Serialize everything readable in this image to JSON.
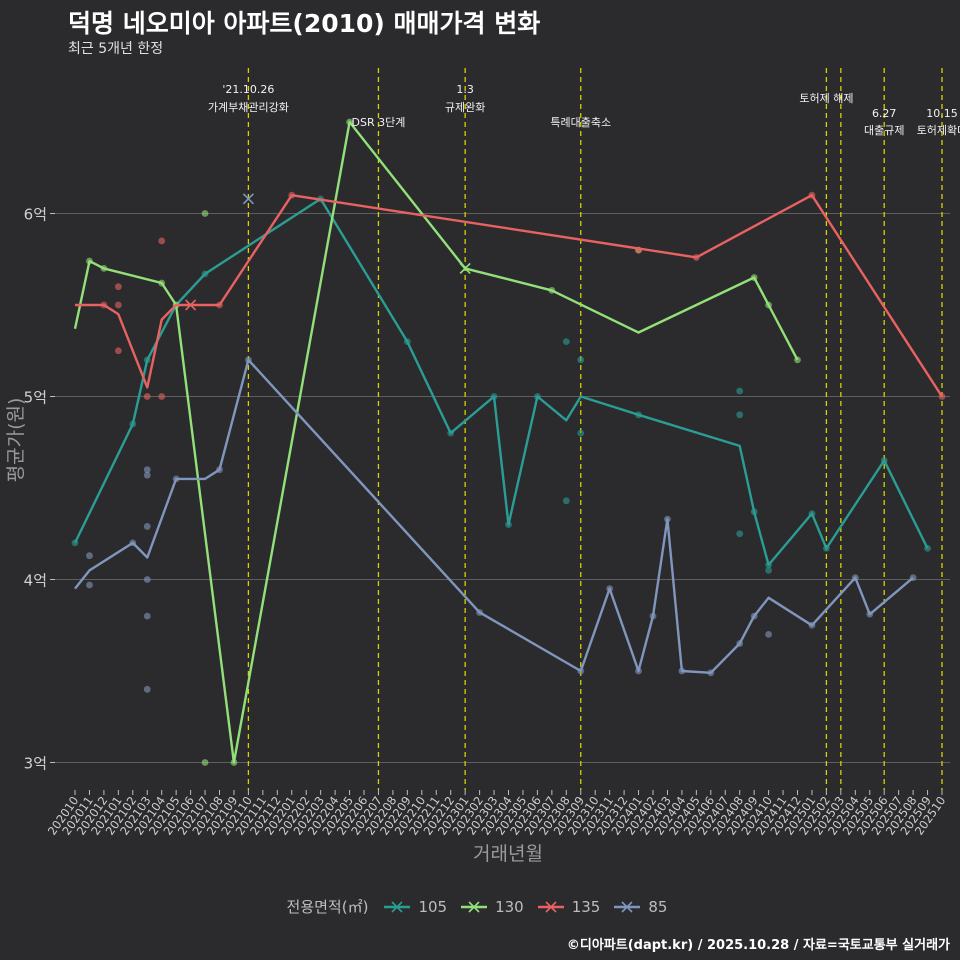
{
  "chart_data": {
    "type": "line",
    "title": "덕명 네오미아 아파트(2010) 매매가격 변화",
    "subtitle": "최근 5개년 한정",
    "xlabel": "거래년월",
    "ylabel": "평균가(원)",
    "ylim": [
      2.85,
      6.95
    ],
    "yticks": [
      {
        "value": 3,
        "label": "3억"
      },
      {
        "value": 4,
        "label": "4억"
      },
      {
        "value": 5,
        "label": "5억"
      },
      {
        "value": 6,
        "label": "6억"
      }
    ],
    "x_months": [
      "202010",
      "202011",
      "202012",
      "202101",
      "202102",
      "202103",
      "202104",
      "202105",
      "202106",
      "202107",
      "202108",
      "202109",
      "202110",
      "202111",
      "202112",
      "202201",
      "202202",
      "202203",
      "202204",
      "202205",
      "202206",
      "202207",
      "202208",
      "202209",
      "202210",
      "202211",
      "202212",
      "202301",
      "202302",
      "202303",
      "202304",
      "202305",
      "202306",
      "202307",
      "202308",
      "202309",
      "202310",
      "202311",
      "202312",
      "202401",
      "202402",
      "202403",
      "202404",
      "202405",
      "202406",
      "202407",
      "202408",
      "202409",
      "202410",
      "202411",
      "202412",
      "202501",
      "202502",
      "202503",
      "202504",
      "202505",
      "202506",
      "202507",
      "202508",
      "202509",
      "202510"
    ],
    "legend_title": "전용면적(㎡)",
    "series": [
      {
        "name": "105",
        "color": "#2a9d94",
        "line": [
          [
            0,
            4.2
          ],
          [
            4,
            4.85
          ],
          [
            5,
            5.2
          ],
          [
            7,
            5.5
          ],
          [
            9,
            5.67
          ],
          [
            17,
            6.08
          ],
          [
            23,
            5.3
          ],
          [
            26,
            4.8
          ],
          [
            29,
            5.0
          ],
          [
            30,
            4.3
          ],
          [
            32,
            5.0
          ],
          [
            34,
            4.87
          ],
          [
            35,
            5.0
          ],
          [
            39,
            4.9
          ],
          [
            46,
            4.73
          ],
          [
            47,
            4.37
          ],
          [
            48,
            4.08
          ],
          [
            51,
            4.36
          ],
          [
            52,
            4.17
          ],
          [
            56,
            4.65
          ],
          [
            59,
            4.17
          ]
        ],
        "points": [
          [
            0,
            4.2
          ],
          [
            4,
            4.85
          ],
          [
            5,
            5.2
          ],
          [
            7,
            5.5
          ],
          [
            9,
            5.67
          ],
          [
            17,
            6.08
          ],
          [
            23,
            5.3
          ],
          [
            26,
            4.8
          ],
          [
            29,
            5.0
          ],
          [
            30,
            4.3
          ],
          [
            32,
            5.0
          ],
          [
            34,
            5.3
          ],
          [
            34,
            4.43
          ],
          [
            35,
            5.2
          ],
          [
            35,
            4.8
          ],
          [
            39,
            4.9
          ],
          [
            46,
            5.03
          ],
          [
            46,
            4.9
          ],
          [
            46,
            4.25
          ],
          [
            47,
            4.37
          ],
          [
            48,
            4.08
          ],
          [
            48,
            4.05
          ],
          [
            51,
            4.36
          ],
          [
            52,
            4.17
          ],
          [
            56,
            4.65
          ],
          [
            59,
            4.17
          ]
        ]
      },
      {
        "name": "130",
        "color": "#93e07a",
        "line": [
          [
            0,
            5.37
          ],
          [
            1,
            5.74
          ],
          [
            2,
            5.7
          ],
          [
            6,
            5.62
          ],
          [
            7,
            5.5
          ],
          [
            11,
            3.0
          ],
          [
            19,
            6.5
          ],
          [
            27,
            5.7
          ],
          [
            33,
            5.58
          ],
          [
            39,
            5.35
          ],
          [
            47,
            5.65
          ],
          [
            48,
            5.5
          ],
          [
            50,
            5.2
          ]
        ],
        "points": [
          [
            1,
            5.74
          ],
          [
            2,
            5.7
          ],
          [
            6,
            5.62
          ],
          [
            7,
            5.5
          ],
          [
            9,
            6.0
          ],
          [
            9,
            3.0
          ],
          [
            11,
            3.0
          ],
          [
            19,
            6.5
          ],
          [
            33,
            5.58
          ],
          [
            39,
            5.8
          ],
          [
            47,
            5.65
          ],
          [
            48,
            5.5
          ],
          [
            50,
            5.2
          ]
        ],
        "crosses": [
          [
            27,
            5.7
          ]
        ]
      },
      {
        "name": "135",
        "color": "#e96262",
        "line": [
          [
            0,
            5.5
          ],
          [
            2,
            5.5
          ],
          [
            3,
            5.45
          ],
          [
            5,
            5.05
          ],
          [
            6,
            5.42
          ],
          [
            7,
            5.5
          ],
          [
            10,
            5.5
          ],
          [
            15,
            6.1
          ],
          [
            43,
            5.76
          ],
          [
            51,
            6.1
          ],
          [
            60,
            5.0
          ]
        ],
        "points": [
          [
            2,
            5.5
          ],
          [
            3,
            5.5
          ],
          [
            3,
            5.6
          ],
          [
            3,
            5.25
          ],
          [
            5,
            5.0
          ],
          [
            6,
            5.85
          ],
          [
            6,
            5.0
          ],
          [
            10,
            5.5
          ],
          [
            15,
            6.1
          ],
          [
            39,
            5.8
          ],
          [
            43,
            5.76
          ],
          [
            51,
            6.1
          ],
          [
            60,
            5.0
          ]
        ],
        "crosses": [
          [
            8,
            5.5
          ]
        ]
      },
      {
        "name": "85",
        "color": "#8096bd",
        "line": [
          [
            0,
            3.95
          ],
          [
            1,
            4.05
          ],
          [
            4,
            4.2
          ],
          [
            5,
            4.12
          ],
          [
            7,
            4.55
          ],
          [
            9,
            4.55
          ],
          [
            10,
            4.6
          ],
          [
            12,
            5.2
          ],
          [
            28,
            3.82
          ],
          [
            35,
            3.5
          ],
          [
            37,
            3.95
          ],
          [
            39,
            3.5
          ],
          [
            40,
            3.8
          ],
          [
            41,
            4.33
          ],
          [
            42,
            3.5
          ],
          [
            44,
            3.49
          ],
          [
            46,
            3.65
          ],
          [
            47,
            3.8
          ],
          [
            48,
            3.9
          ],
          [
            51,
            3.75
          ],
          [
            54,
            4.01
          ],
          [
            55,
            3.81
          ],
          [
            58,
            4.01
          ]
        ],
        "points": [
          [
            1,
            4.13
          ],
          [
            1,
            3.97
          ],
          [
            4,
            4.2
          ],
          [
            5,
            4.6
          ],
          [
            5,
            4.57
          ],
          [
            5,
            4.29
          ],
          [
            5,
            4.0
          ],
          [
            5,
            3.8
          ],
          [
            5,
            3.4
          ],
          [
            7,
            4.55
          ],
          [
            10,
            4.6
          ],
          [
            12,
            5.2
          ],
          [
            28,
            3.82
          ],
          [
            35,
            3.5
          ],
          [
            37,
            3.95
          ],
          [
            39,
            3.5
          ],
          [
            40,
            3.8
          ],
          [
            41,
            4.33
          ],
          [
            42,
            3.5
          ],
          [
            44,
            3.49
          ],
          [
            46,
            3.65
          ],
          [
            47,
            3.8
          ],
          [
            48,
            3.7
          ],
          [
            51,
            3.75
          ],
          [
            54,
            4.01
          ],
          [
            55,
            3.81
          ],
          [
            58,
            4.01
          ]
        ],
        "crosses": [
          [
            12,
            6.08
          ]
        ]
      }
    ],
    "annotations": [
      {
        "x": 12,
        "line1": "'21.10.26",
        "line2": "가계부채관리강화",
        "row": 0
      },
      {
        "x": 21,
        "line1": "",
        "line2": "DSR 3단계",
        "row": 1
      },
      {
        "x": 27,
        "line1": "1.3",
        "line2": "규제완화",
        "row": 0
      },
      {
        "x": 35,
        "line1": "",
        "line2": "특례대출축소",
        "row": 1
      },
      {
        "x": 52,
        "line1": "",
        "line2": "토허제 해제",
        "row": 2
      },
      {
        "x": 53,
        "line1": "",
        "line2": "",
        "row": 2
      },
      {
        "x": 56,
        "line1": "6.27",
        "line2": "대출규제",
        "row": 3
      },
      {
        "x": 60,
        "line1": "10.15",
        "line2": "토허제확대",
        "row": 3
      }
    ],
    "caption": "©디아파트(dapt.kr) / 2025.10.28 / 자료=국토교통부 실거래가"
  }
}
